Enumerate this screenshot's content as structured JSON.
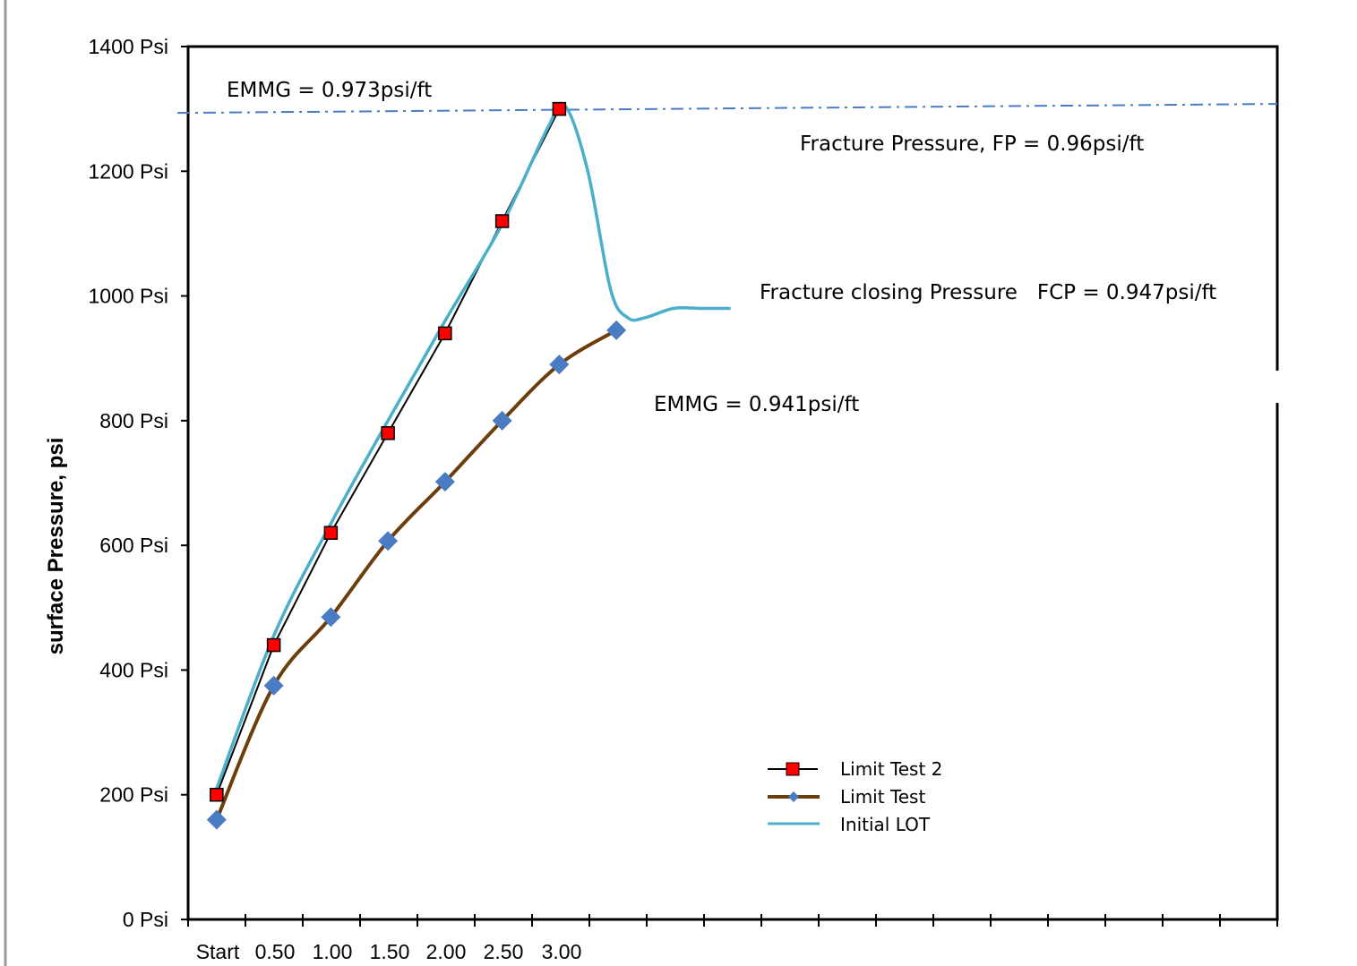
{
  "chart_data": {
    "type": "line",
    "title": "",
    "ylabel": "surface Pressure, psi",
    "xlabel": "",
    "ylim": [
      0,
      1400
    ],
    "y_ticks": [
      0,
      200,
      400,
      600,
      800,
      1000,
      1200,
      1400
    ],
    "y_tick_labels": [
      "0 Psi",
      "200 Psi",
      "400 Psi",
      "600 Psi",
      "800 Psi",
      "1000 Psi",
      "1200 Psi",
      "1400 Psi"
    ],
    "x_tick_labels": [
      "Start",
      "0.50",
      "1.00",
      "1.50",
      "2.00",
      "2.50",
      "3.00"
    ],
    "x_minor_ticks": 19,
    "series": [
      {
        "name": "Limit Test 2",
        "color": "#000000",
        "marker": "square",
        "marker_color": "#ff0000",
        "x": [
          0.25,
          0.75,
          1.25,
          1.75,
          2.25,
          2.75,
          3.25
        ],
        "y": [
          200,
          440,
          620,
          780,
          940,
          1120,
          1300
        ]
      },
      {
        "name": "Limit Test",
        "color": "#6b3e0c",
        "marker": "diamond",
        "marker_color": "#4a7cc4",
        "x": [
          0.25,
          0.75,
          1.25,
          1.75,
          2.25,
          2.75,
          3.25,
          3.75
        ],
        "y": [
          160,
          375,
          485,
          607,
          702,
          800,
          890,
          945
        ]
      },
      {
        "name": "Initial LOT",
        "color": "#4bafc9",
        "marker": "none",
        "x": [
          0.25,
          0.75,
          1.25,
          1.75,
          2.25,
          2.75,
          3.15,
          3.3,
          3.5,
          3.7,
          3.85,
          4.0,
          4.25,
          4.5,
          4.75
        ],
        "y": [
          210,
          455,
          635,
          800,
          960,
          1115,
          1270,
          1305,
          1200,
          1010,
          965,
          965,
          980,
          980,
          980
        ]
      }
    ],
    "reference_line": {
      "label": "EMMG = 0.973psi/ft",
      "y": 1295,
      "style": "dash-dot",
      "color": "#4a7cc4"
    },
    "annotations": [
      "EMMG = 0.973psi/ft",
      "Fracture Pressure, FP = 0.96psi/ft",
      "Fracture closing Pressure   FCP = 0.947psi/ft",
      "EMMG = 0.941psi/ft"
    ],
    "legend_entries": [
      "Limit Test 2",
      "Limit Test",
      "Initial LOT"
    ],
    "legend_position": "bottom-right",
    "grid": false
  }
}
